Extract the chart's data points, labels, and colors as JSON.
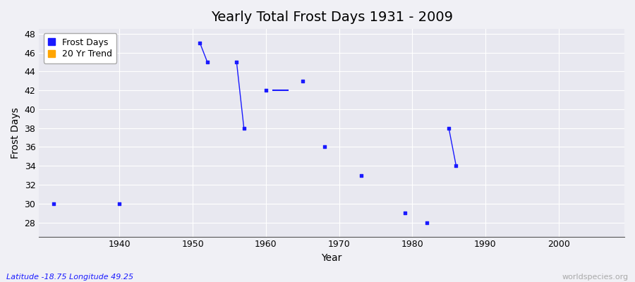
{
  "title": "Yearly Total Frost Days 1931 - 2009",
  "xlabel": "Year",
  "ylabel": "Frost Days",
  "fig_bg_color": "#f0f0f5",
  "plot_bg_color": "#e8e8f0",
  "grid_color": "#ffffff",
  "xlim": [
    1929,
    2009
  ],
  "ylim": [
    26.5,
    48.5
  ],
  "yticks": [
    28,
    30,
    32,
    34,
    36,
    38,
    40,
    42,
    44,
    46,
    48
  ],
  "xticks": [
    1940,
    1950,
    1960,
    1970,
    1980,
    1990,
    2000
  ],
  "frost_days_color": "#1a1aff",
  "trend_color": "#ffa500",
  "scatter_data": [
    [
      1931,
      30
    ],
    [
      1940,
      30
    ],
    [
      1951,
      47
    ],
    [
      1952,
      45
    ],
    [
      1956,
      45
    ],
    [
      1957,
      38
    ],
    [
      1960,
      42
    ],
    [
      1965,
      43
    ],
    [
      1968,
      36
    ],
    [
      1973,
      33
    ],
    [
      1979,
      29
    ],
    [
      1982,
      28
    ],
    [
      1985,
      38
    ],
    [
      1986,
      34
    ]
  ],
  "line_segments": [
    [
      [
        1951,
        47
      ],
      [
        1952,
        45
      ]
    ],
    [
      [
        1956,
        45
      ],
      [
        1957,
        38
      ]
    ],
    [
      [
        1985,
        38
      ],
      [
        1986,
        34
      ]
    ]
  ],
  "trend_line": [
    [
      1961,
      42
    ],
    [
      1963,
      42
    ]
  ],
  "footnote_left": "Latitude -18.75 Longitude 49.25",
  "footnote_right": "worldspecies.org",
  "title_fontsize": 14,
  "axis_fontsize": 10,
  "tick_fontsize": 9,
  "footnote_fontsize": 8
}
